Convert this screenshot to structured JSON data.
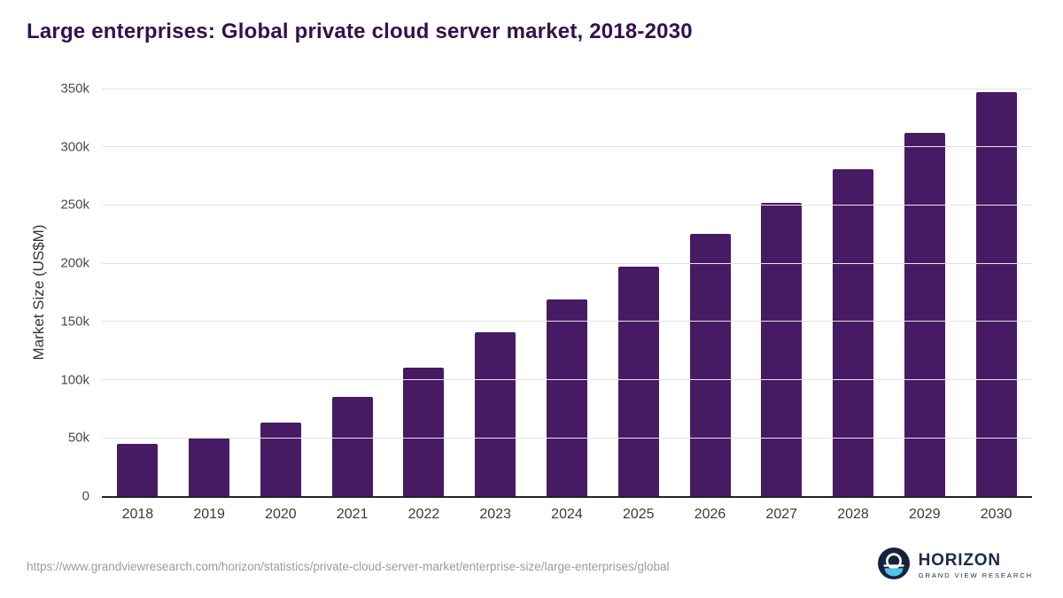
{
  "title": "Large enterprises: Global private cloud server market, 2018-2030",
  "colors": {
    "bar": "#471a64",
    "title": "#33104e",
    "grid": "#e4e4e4",
    "axis": "#21212f"
  },
  "chart_data": {
    "type": "bar",
    "title": "Large enterprises: Global private cloud server market, 2018-2030",
    "categories": [
      "2018",
      "2019",
      "2020",
      "2021",
      "2022",
      "2023",
      "2024",
      "2025",
      "2026",
      "2027",
      "2028",
      "2029",
      "2030"
    ],
    "values": [
      45000,
      50000,
      63000,
      85000,
      110000,
      141000,
      169000,
      197000,
      225000,
      252000,
      281000,
      312000,
      347000
    ],
    "xlabel": "",
    "ylabel": "Market Size (US$M)",
    "ylim": [
      0,
      350000
    ],
    "ytick_step": 50000,
    "ytick_labels": [
      "0",
      "50k",
      "100k",
      "150k",
      "200k",
      "250k",
      "300k",
      "350k"
    ],
    "grid": true,
    "legend": false,
    "bar_color": "#471a64"
  },
  "footer": {
    "source_url": "https://www.grandviewresearch.com/horizon/statistics/private-cloud-server-market/enterprise-size/large-enterprises/global",
    "logo_name": "HORIZON",
    "logo_subtitle": "GRAND VIEW RESEARCH"
  }
}
